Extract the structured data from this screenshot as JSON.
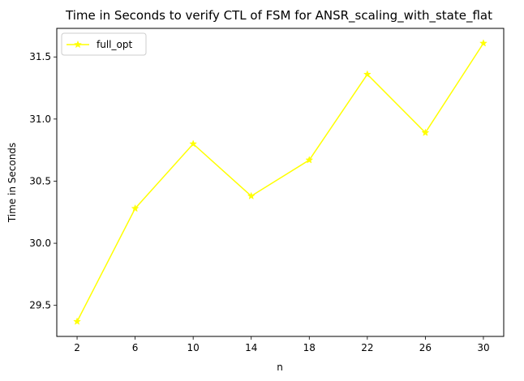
{
  "chart_data": {
    "type": "line",
    "title": "Time in Seconds to verify CTL of FSM for ANSR_scaling_with_state_flat",
    "xlabel": "n",
    "ylabel": "Time in Seconds",
    "x": [
      2,
      6,
      10,
      14,
      18,
      22,
      26,
      30
    ],
    "xticks": [
      2,
      6,
      10,
      14,
      18,
      22,
      26,
      30
    ],
    "yticks": [
      29.5,
      30.0,
      30.5,
      31.0,
      31.5
    ],
    "ytick_labels": [
      "29.5",
      "30.0",
      "30.5",
      "31.0",
      "31.5"
    ],
    "xlim": [
      0.6,
      31.4
    ],
    "ylim": [
      29.25,
      31.73
    ],
    "grid": false,
    "legend_position": "top-left",
    "series": [
      {
        "name": "full_opt",
        "color": "#ffff00",
        "marker": "star",
        "values": [
          29.37,
          30.28,
          30.8,
          30.38,
          30.67,
          31.36,
          30.89,
          31.61
        ]
      }
    ]
  }
}
